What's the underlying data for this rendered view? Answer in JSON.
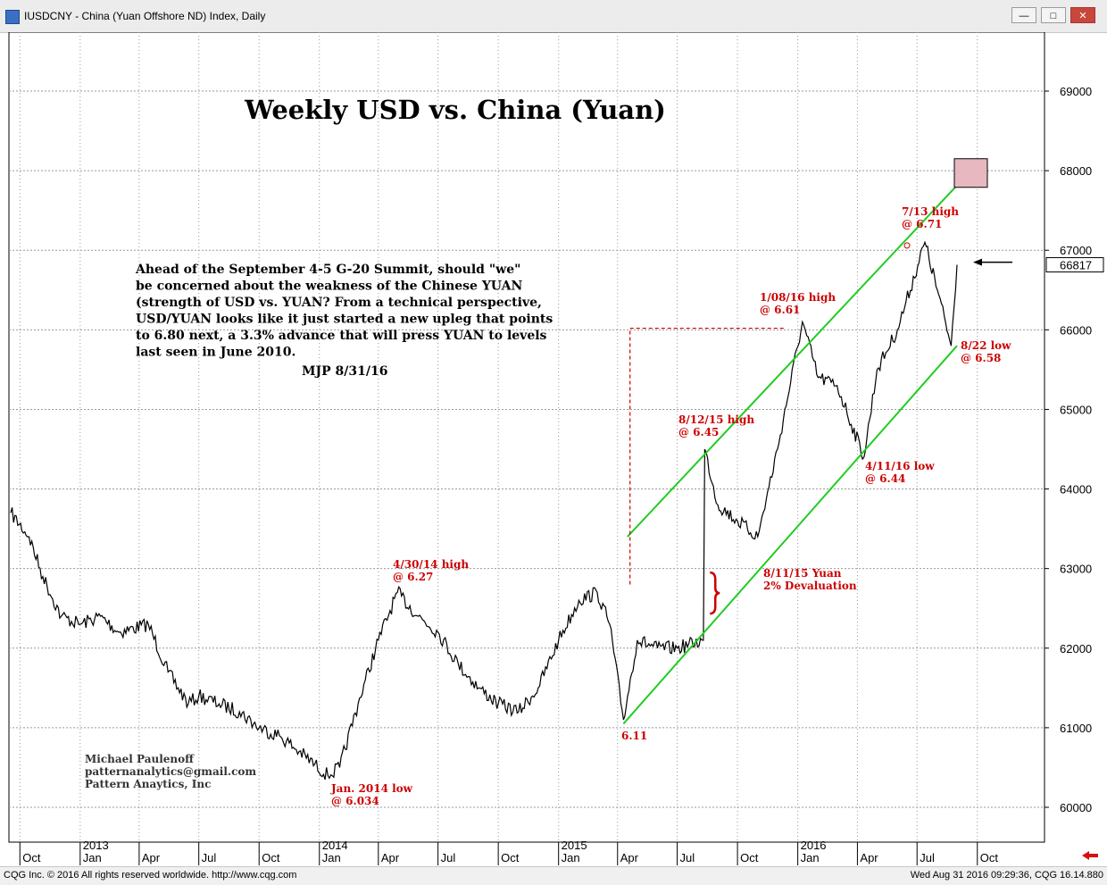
{
  "window": {
    "title": "IUSDCNY - China (Yuan Offshore ND) Index, Daily",
    "controls": [
      "minimize",
      "restore",
      "close"
    ]
  },
  "footer": {
    "left": "CQG Inc. © 2016 All rights reserved worldwide. http://www.cqg.com",
    "right": "Wed Aug 31 2016 09:29:36, CQG 16.14.880"
  },
  "chart_data": {
    "type": "line",
    "title": "Weekly USD vs. China (Yuan)",
    "y_ticks": [
      "60000",
      "61000",
      "62000",
      "63000",
      "64000",
      "65000",
      "66000",
      "67000",
      "68000",
      "69000"
    ],
    "ylim": [
      59700,
      70000
    ],
    "x_month_labels": [
      "Oct",
      "Jan",
      "Apr",
      "Jul",
      "Oct",
      "Jan",
      "Apr",
      "Jul",
      "Oct",
      "Jan",
      "Apr",
      "Jul",
      "Oct",
      "Jan",
      "Apr",
      "Jul",
      "Oct"
    ],
    "x_year_labels": [
      "2013",
      "2014",
      "2015",
      "2016"
    ],
    "last_price_label": "66817",
    "series": [
      {
        "points": [
          {
            "x": "2012-09-17",
            "y": 63700
          },
          {
            "x": "2012-10-15",
            "y": 63400
          },
          {
            "x": "2012-11-05",
            "y": 62900
          },
          {
            "x": "2012-12-03",
            "y": 62400
          },
          {
            "x": "2013-01-01",
            "y": 62300
          },
          {
            "x": "2013-02-01",
            "y": 62400
          },
          {
            "x": "2013-03-01",
            "y": 62200
          },
          {
            "x": "2013-04-15",
            "y": 62300
          },
          {
            "x": "2013-05-15",
            "y": 61700
          },
          {
            "x": "2013-06-15",
            "y": 61300
          },
          {
            "x": "2013-07-01",
            "y": 61400
          },
          {
            "x": "2013-08-01",
            "y": 61300
          },
          {
            "x": "2013-09-01",
            "y": 61200
          },
          {
            "x": "2013-10-01",
            "y": 61000
          },
          {
            "x": "2013-11-01",
            "y": 60900
          },
          {
            "x": "2013-12-01",
            "y": 60700
          },
          {
            "x": "2014-01-14",
            "y": 60400
          },
          {
            "x": "2014-02-01",
            "y": 60500
          },
          {
            "x": "2014-03-01",
            "y": 61300
          },
          {
            "x": "2014-04-01",
            "y": 62100
          },
          {
            "x": "2014-04-30",
            "y": 62700
          },
          {
            "x": "2014-06-01",
            "y": 62400
          },
          {
            "x": "2014-07-01",
            "y": 62200
          },
          {
            "x": "2014-08-01",
            "y": 61800
          },
          {
            "x": "2014-09-01",
            "y": 61500
          },
          {
            "x": "2014-10-01",
            "y": 61300
          },
          {
            "x": "2014-11-01",
            "y": 61200
          },
          {
            "x": "2014-12-01",
            "y": 61500
          },
          {
            "x": "2015-01-01",
            "y": 62100
          },
          {
            "x": "2015-02-01",
            "y": 62600
          },
          {
            "x": "2015-03-01",
            "y": 62700
          },
          {
            "x": "2015-03-20",
            "y": 62300
          },
          {
            "x": "2015-04-10",
            "y": 61100
          },
          {
            "x": "2015-05-01",
            "y": 62100
          },
          {
            "x": "2015-06-01",
            "y": 62000
          },
          {
            "x": "2015-07-01",
            "y": 62000
          },
          {
            "x": "2015-08-10",
            "y": 62100
          },
          {
            "x": "2015-08-12",
            "y": 64500
          },
          {
            "x": "2015-09-01",
            "y": 63800
          },
          {
            "x": "2015-10-01",
            "y": 63600
          },
          {
            "x": "2015-11-01",
            "y": 63400
          },
          {
            "x": "2015-12-01",
            "y": 64500
          },
          {
            "x": "2016-01-08",
            "y": 66100
          },
          {
            "x": "2016-02-01",
            "y": 65400
          },
          {
            "x": "2016-03-01",
            "y": 65300
          },
          {
            "x": "2016-04-11",
            "y": 64400
          },
          {
            "x": "2016-05-01",
            "y": 65500
          },
          {
            "x": "2016-06-01",
            "y": 66000
          },
          {
            "x": "2016-07-13",
            "y": 67100
          },
          {
            "x": "2016-08-01",
            "y": 66500
          },
          {
            "x": "2016-08-22",
            "y": 65800
          },
          {
            "x": "2016-08-31",
            "y": 66817
          }
        ]
      }
    ],
    "annotations": [
      {
        "lines": [
          "4/30/14 high",
          "@ 6.27"
        ]
      },
      {
        "lines": [
          "Jan. 2014 low",
          "@ 6.034"
        ]
      },
      {
        "lines": [
          "6.11"
        ]
      },
      {
        "lines": [
          "8/12/15 high",
          "@ 6.45"
        ]
      },
      {
        "lines": [
          "8/11/15 Yuan",
          "2% Devaluation"
        ]
      },
      {
        "lines": [
          "1/08/16 high",
          "@ 6.61"
        ]
      },
      {
        "lines": [
          "4/11/16 low",
          "@ 6.44"
        ]
      },
      {
        "lines": [
          "7/13 high",
          "@ 6.71"
        ]
      },
      {
        "lines": [
          "8/22 low",
          "@ 6.58"
        ]
      }
    ],
    "commentary": [
      "Ahead of the September 4-5 G-20 Summit, should \"we\"",
      "be concerned about the weakness of the Chinese YUAN",
      "(strength of USD vs. YUAN? From a technical perspective,",
      "USD/YUAN looks like it just started a new upleg that points",
      "to 6.80 next, a 3.3% advance that will press YUAN to levels",
      "last seen in June 2010."
    ],
    "signature": "MJP 8/31/16",
    "author": [
      "Michael Paulenoff",
      "patternanalytics@gmail.com",
      "Pattern Anaytics, Inc"
    ],
    "colors": {
      "price": "#000000",
      "channel": "#22cc22",
      "annotation": "#cc0000",
      "grid": "#9a9a9a",
      "target_box": "#e8b8c0"
    }
  }
}
